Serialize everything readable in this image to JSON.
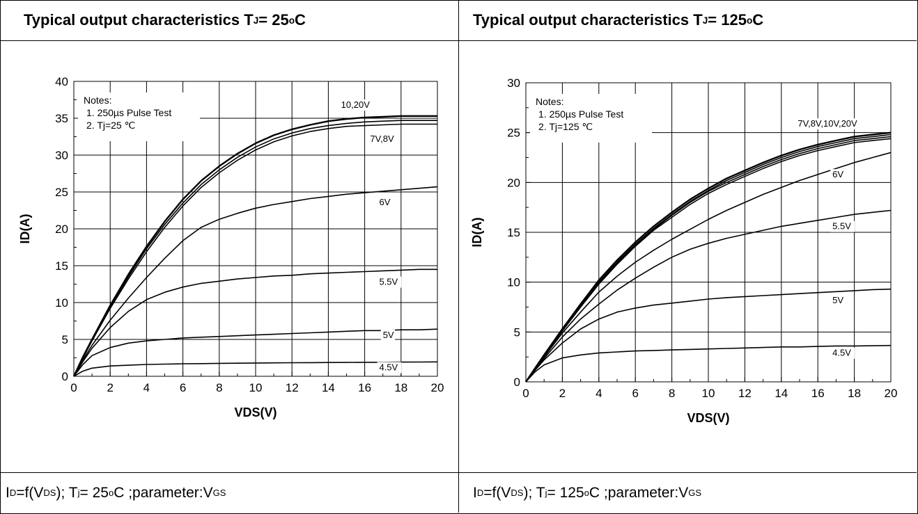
{
  "panels": [
    {
      "title": {
        "main": "Typical output characteristics T",
        "sub": "J",
        "eq": "= 25",
        "sup": "o",
        "unit": "C"
      },
      "footer": {
        "a": "I",
        "a_sub": "D",
        "b": "=f(V",
        "b_sub": "DS",
        "c": " ); T",
        "c_sub": "j",
        "d": " = 25",
        "d_sup": "o",
        "e": "C ;parameter:V",
        "e_sub": "GS"
      }
    },
    {
      "title": {
        "main": "Typical output characteristics T",
        "sub": "J",
        "eq": "= 125",
        "sup": "o",
        "unit": "C"
      },
      "footer": {
        "a": "I",
        "a_sub": "D",
        "b": "=f(V",
        "b_sub": "DS",
        "c": " ); T",
        "c_sub": "j",
        "d": " = 125",
        "d_sup": "o",
        "e": "C ;parameter:V",
        "e_sub": "GS"
      }
    }
  ],
  "chart_data": [
    {
      "type": "line",
      "xlabel": "VDS(V)",
      "ylabel": "ID(A)",
      "xlim": [
        0,
        20
      ],
      "ylim": [
        0,
        40
      ],
      "xticks": [
        0,
        2,
        4,
        6,
        8,
        10,
        12,
        14,
        16,
        18,
        20
      ],
      "yticks": [
        0,
        5,
        10,
        15,
        20,
        25,
        30,
        35,
        40
      ],
      "grid": true,
      "notes": [
        "Notes:",
        "1. 250µs  Pulse Test",
        "2. Tj=25 ℃"
      ],
      "x": [
        0,
        0.5,
        1,
        2,
        3,
        4,
        5,
        6,
        7,
        8,
        9,
        10,
        11,
        12,
        13,
        14,
        15,
        16,
        17,
        18,
        19,
        20
      ],
      "series": [
        {
          "name": "10,20V",
          "label": "10,20V",
          "values": [
            0,
            2.6,
            5.0,
            9.6,
            13.8,
            17.6,
            21.0,
            24.0,
            26.5,
            28.5,
            30.2,
            31.6,
            32.7,
            33.5,
            34.1,
            34.6,
            34.9,
            35.1,
            35.2,
            35.3,
            35.3,
            35.3
          ]
        },
        {
          "name": "7V",
          "label": "",
          "values": [
            0,
            2.5,
            4.9,
            9.4,
            13.5,
            17.3,
            20.6,
            23.5,
            26.0,
            28.0,
            29.7,
            31.1,
            32.2,
            33.0,
            33.6,
            34.0,
            34.3,
            34.5,
            34.6,
            34.7,
            34.7,
            34.7
          ]
        },
        {
          "name": "8V",
          "label": "7V,8V",
          "values": [
            0,
            2.45,
            4.8,
            9.2,
            13.2,
            16.9,
            20.2,
            23.1,
            25.6,
            27.6,
            29.3,
            30.7,
            31.8,
            32.6,
            33.2,
            33.6,
            33.9,
            34.0,
            34.1,
            34.2,
            34.2,
            34.2
          ]
        },
        {
          "name": "6V",
          "label": "6V",
          "values": [
            0,
            2.2,
            4.2,
            7.6,
            10.6,
            13.4,
            16.0,
            18.4,
            20.2,
            21.3,
            22.1,
            22.8,
            23.3,
            23.7,
            24.1,
            24.4,
            24.7,
            24.9,
            25.1,
            25.3,
            25.5,
            25.7
          ]
        },
        {
          "name": "5.5V",
          "label": "5.5V",
          "values": [
            0,
            2.0,
            3.8,
            6.6,
            8.8,
            10.4,
            11.4,
            12.1,
            12.6,
            12.9,
            13.2,
            13.4,
            13.6,
            13.7,
            13.9,
            14.0,
            14.1,
            14.2,
            14.3,
            14.4,
            14.5,
            14.5
          ]
        },
        {
          "name": "5V",
          "label": "5V",
          "values": [
            0,
            1.6,
            2.8,
            3.9,
            4.5,
            4.8,
            5.0,
            5.2,
            5.3,
            5.4,
            5.5,
            5.6,
            5.7,
            5.8,
            5.9,
            6.0,
            6.1,
            6.2,
            6.2,
            6.3,
            6.3,
            6.4
          ]
        },
        {
          "name": "4.5V",
          "label": "4.5V",
          "values": [
            0,
            0.7,
            1.1,
            1.4,
            1.5,
            1.6,
            1.65,
            1.7,
            1.72,
            1.75,
            1.77,
            1.8,
            1.82,
            1.84,
            1.85,
            1.87,
            1.88,
            1.9,
            1.9,
            1.92,
            1.93,
            1.95
          ]
        }
      ],
      "labels_at": [
        {
          "text": "10,20V",
          "x": 14.7,
          "y": 36.4
        },
        {
          "text": "7V,8V",
          "x": 16.3,
          "y": 31.8
        },
        {
          "text": "6V",
          "x": 16.8,
          "y": 23.2
        },
        {
          "text": "5.5V",
          "x": 16.8,
          "y": 12.4
        },
        {
          "text": "5V",
          "x": 17.0,
          "y": 5.2
        },
        {
          "text": "4.5V",
          "x": 16.8,
          "y": 0.8
        }
      ]
    },
    {
      "type": "line",
      "xlabel": "VDS(V)",
      "ylabel": "ID(A)",
      "xlim": [
        0,
        20
      ],
      "ylim": [
        0,
        30
      ],
      "xticks": [
        0,
        2,
        4,
        6,
        8,
        10,
        12,
        14,
        16,
        18,
        20
      ],
      "yticks": [
        0,
        5,
        10,
        15,
        20,
        25,
        30
      ],
      "grid": true,
      "notes": [
        "Notes:",
        "1. 250µs  Pulse Test",
        "2. Tj=125 ℃"
      ],
      "x": [
        0,
        0.5,
        1,
        2,
        3,
        4,
        5,
        6,
        7,
        8,
        9,
        10,
        11,
        12,
        13,
        14,
        15,
        16,
        17,
        18,
        19,
        20
      ],
      "series": [
        {
          "name": "20V",
          "label": "7V,8V,10V,20V",
          "values": [
            0,
            1.35,
            2.7,
            5.3,
            7.8,
            10.2,
            12.2,
            14.0,
            15.6,
            17.0,
            18.3,
            19.4,
            20.4,
            21.2,
            22.0,
            22.7,
            23.3,
            23.8,
            24.2,
            24.6,
            24.8,
            25.0
          ]
        },
        {
          "name": "10V",
          "label": "",
          "values": [
            0,
            1.33,
            2.65,
            5.2,
            7.7,
            10.0,
            12.0,
            13.8,
            15.4,
            16.8,
            18.1,
            19.2,
            20.2,
            21.0,
            21.8,
            22.5,
            23.1,
            23.6,
            24.0,
            24.4,
            24.6,
            24.8
          ]
        },
        {
          "name": "8V",
          "label": "",
          "values": [
            0,
            1.32,
            2.62,
            5.15,
            7.6,
            9.9,
            11.9,
            13.7,
            15.3,
            16.7,
            18.0,
            19.1,
            20.0,
            20.8,
            21.6,
            22.3,
            22.9,
            23.4,
            23.8,
            24.2,
            24.4,
            24.6
          ]
        },
        {
          "name": "7V",
          "label": "",
          "values": [
            0,
            1.3,
            2.6,
            5.1,
            7.5,
            9.8,
            11.8,
            13.6,
            15.2,
            16.5,
            17.8,
            18.9,
            19.8,
            20.6,
            21.4,
            22.1,
            22.7,
            23.2,
            23.6,
            24.0,
            24.2,
            24.4
          ]
        },
        {
          "name": "6V",
          "label": "6V",
          "values": [
            0,
            1.25,
            2.5,
            4.9,
            7.0,
            9.0,
            10.6,
            12.0,
            13.2,
            14.3,
            15.3,
            16.3,
            17.2,
            18.0,
            18.8,
            19.5,
            20.2,
            20.8,
            21.4,
            22.0,
            22.5,
            23.0
          ]
        },
        {
          "name": "5.5V",
          "label": "5.5V",
          "values": [
            0,
            1.2,
            2.35,
            4.5,
            6.3,
            7.8,
            9.2,
            10.4,
            11.5,
            12.5,
            13.3,
            13.9,
            14.4,
            14.8,
            15.2,
            15.6,
            15.9,
            16.2,
            16.5,
            16.8,
            17.0,
            17.2
          ]
        },
        {
          "name": "5V",
          "label": "5V",
          "values": [
            0,
            1.15,
            2.2,
            3.9,
            5.3,
            6.3,
            7.0,
            7.4,
            7.7,
            7.9,
            8.1,
            8.3,
            8.45,
            8.55,
            8.65,
            8.75,
            8.85,
            8.95,
            9.05,
            9.15,
            9.25,
            9.3
          ]
        },
        {
          "name": "4.5V",
          "label": "4.5V",
          "values": [
            0,
            1.0,
            1.7,
            2.4,
            2.7,
            2.9,
            3.0,
            3.1,
            3.15,
            3.2,
            3.25,
            3.3,
            3.35,
            3.4,
            3.45,
            3.5,
            3.5,
            3.55,
            3.6,
            3.6,
            3.62,
            3.65
          ]
        }
      ],
      "labels_at": [
        {
          "text": "7V,8V,10V,20V",
          "x": 14.9,
          "y": 25.6
        },
        {
          "text": "6V",
          "x": 16.8,
          "y": 20.5
        },
        {
          "text": "5.5V",
          "x": 16.8,
          "y": 15.3
        },
        {
          "text": "5V",
          "x": 16.8,
          "y": 7.9
        },
        {
          "text": "4.5V",
          "x": 16.8,
          "y": 2.6
        }
      ]
    }
  ]
}
